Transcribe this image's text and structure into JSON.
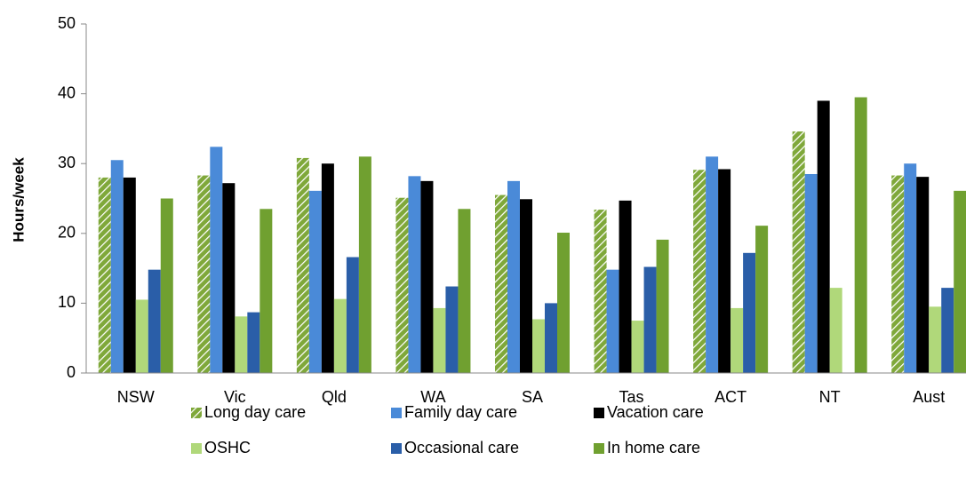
{
  "chart_data": {
    "type": "bar",
    "y_axis_label": "Hours/week",
    "categories": [
      "NSW",
      "Vic",
      "Qld",
      "WA",
      "SA",
      "Tas",
      "ACT",
      "NT",
      "Aust"
    ],
    "series": [
      {
        "name": "Long day care",
        "color": "#7fa83a",
        "hatch": true,
        "values": [
          28,
          28.3,
          30.8,
          25.1,
          25.5,
          23.4,
          29.1,
          34.6,
          28.3
        ]
      },
      {
        "name": "Family day care",
        "color": "#4a8ad8",
        "values": [
          30.5,
          32.4,
          26.1,
          28.2,
          27.5,
          14.8,
          31,
          28.5,
          30
        ]
      },
      {
        "name": "Vacation care",
        "color": "#000000",
        "values": [
          28,
          27.2,
          30,
          27.5,
          24.9,
          24.7,
          29.2,
          39,
          28.1
        ]
      },
      {
        "name": "OSHC",
        "color": "#b0d87a",
        "values": [
          10.5,
          8.1,
          10.6,
          9.3,
          7.7,
          7.5,
          9.3,
          12.2,
          9.5
        ]
      },
      {
        "name": "Occasional care",
        "color": "#2a5ea8",
        "values": [
          14.8,
          8.7,
          16.6,
          12.4,
          10,
          15.2,
          17.2,
          null,
          12.2
        ]
      },
      {
        "name": "In home care",
        "color": "#70a030",
        "values": [
          25,
          23.5,
          31,
          23.5,
          20.1,
          19.1,
          21.1,
          39.5,
          26.1
        ]
      }
    ],
    "ylim": [
      0,
      50
    ],
    "yticks": [
      0,
      10,
      20,
      30,
      40,
      50
    ]
  }
}
